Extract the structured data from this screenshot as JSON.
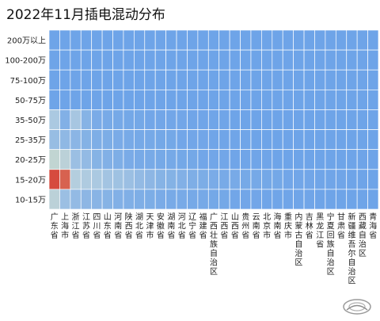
{
  "title": "2022年11月插电混动分布",
  "chart_data": {
    "type": "heatmap",
    "title": "2022年11月插电混动分布",
    "y_categories": [
      "200万以上",
      "100-200万",
      "75-100万",
      "50-75万",
      "35-50万",
      "25-35万",
      "20-25万",
      "15-20万",
      "10-15万"
    ],
    "x_categories": [
      "广东省",
      "上海市",
      "浙江省",
      "江苏省",
      "四川省",
      "山东省",
      "河南省",
      "陕西省",
      "湖北省",
      "天津市",
      "安徽省",
      "湖南省",
      "河北省",
      "辽宁省",
      "福建省",
      "广西壮族自治区",
      "江西省",
      "山西省",
      "贵州省",
      "云南省",
      "北京市",
      "海南省",
      "重庆市",
      "内蒙古自治区",
      "吉林省",
      "黑龙江省",
      "宁夏回族自治区",
      "甘肃省",
      "新疆维吾尔自治区",
      "西藏自治区",
      "青海省"
    ],
    "values": [
      [
        0,
        0,
        0,
        0,
        0,
        0,
        0,
        0,
        0,
        0,
        0,
        0,
        0,
        0,
        0,
        0,
        0,
        0,
        0,
        0,
        0,
        0,
        0,
        0,
        0,
        0,
        0,
        0,
        0,
        0,
        0
      ],
      [
        0,
        0,
        0,
        0,
        0,
        0,
        0,
        0,
        0,
        0,
        0,
        0,
        0,
        0,
        0,
        0,
        0,
        0,
        0,
        0,
        0,
        0,
        0,
        0,
        0,
        0,
        0,
        0,
        0,
        0,
        0
      ],
      [
        0,
        0,
        0,
        0,
        0,
        0,
        0,
        0,
        0,
        0,
        0,
        0,
        0,
        0,
        0,
        0,
        0,
        0,
        0,
        0,
        0,
        0,
        0,
        0,
        0,
        0,
        0,
        0,
        0,
        0,
        0
      ],
      [
        0,
        0,
        0,
        0,
        0,
        0,
        0,
        0,
        0,
        0,
        0,
        0,
        0,
        0,
        0,
        0,
        0,
        0,
        0,
        0,
        0,
        0,
        0,
        0,
        0,
        0,
        0,
        0,
        0,
        0,
        0
      ],
      [
        0.3,
        0.1,
        0.28,
        0.12,
        0.06,
        0.05,
        0.04,
        0.03,
        0.03,
        0.02,
        0.02,
        0.02,
        0.02,
        0.01,
        0.01,
        0.01,
        0.01,
        0,
        0,
        0,
        0,
        0,
        0,
        0,
        0,
        0,
        0,
        0,
        0,
        0,
        0
      ],
      [
        0.2,
        0.16,
        0.14,
        0.11,
        0.08,
        0.07,
        0.06,
        0.05,
        0.04,
        0.04,
        0.03,
        0.03,
        0.02,
        0.02,
        0.02,
        0.01,
        0.01,
        0.01,
        0.01,
        0,
        0,
        0,
        0,
        0,
        0,
        0,
        0,
        0,
        0,
        0,
        0
      ],
      [
        0.45,
        0.4,
        0.22,
        0.18,
        0.12,
        0.1,
        0.08,
        0.06,
        0.05,
        0.05,
        0.04,
        0.04,
        0.03,
        0.03,
        0.02,
        0.02,
        0.02,
        0.01,
        0.01,
        0.01,
        0.01,
        0,
        0,
        0,
        0,
        0,
        0,
        0,
        0,
        0,
        0
      ],
      [
        1.0,
        0.95,
        0.35,
        0.32,
        0.3,
        0.26,
        0.24,
        0.22,
        0.18,
        0.15,
        0.12,
        0.11,
        0.1,
        0.08,
        0.07,
        0.06,
        0.05,
        0.05,
        0.04,
        0.04,
        0.03,
        0.03,
        0.02,
        0.02,
        0.02,
        0.01,
        0.01,
        0.01,
        0,
        0,
        0
      ],
      [
        0.4,
        0.22,
        0.18,
        0.15,
        0.13,
        0.12,
        0.1,
        0.09,
        0.08,
        0.07,
        0.06,
        0.05,
        0.05,
        0.04,
        0.04,
        0.03,
        0.03,
        0.02,
        0.02,
        0.02,
        0.01,
        0.01,
        0.01,
        0.01,
        0.01,
        0,
        0,
        0,
        0,
        0,
        0
      ]
    ],
    "color_scale": [
      "#6ea4e8",
      "#b2cde0",
      "#dde3b9",
      "#d64b3e"
    ],
    "grid": true
  }
}
